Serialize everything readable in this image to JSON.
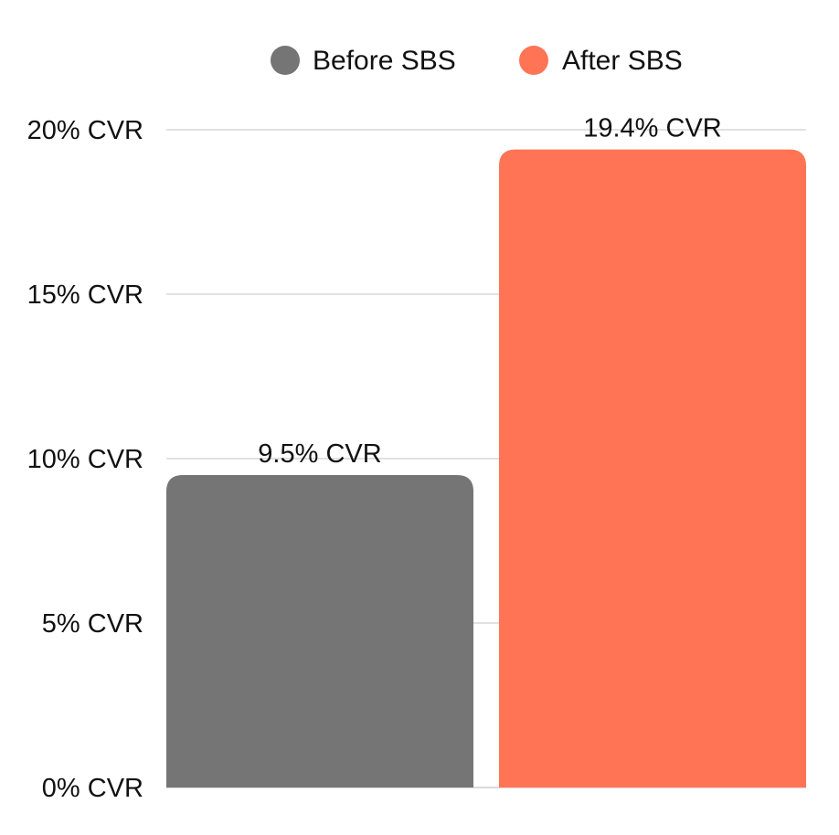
{
  "chart_data": {
    "type": "bar",
    "title": "",
    "xlabel": "",
    "ylabel": "",
    "ylim": [
      0,
      20
    ],
    "y_ticks": [
      0,
      5,
      10,
      15,
      20
    ],
    "y_tick_labels": [
      "0% CVR",
      "5% CVR",
      "10% CVR",
      "15% CVR",
      "20% CVR"
    ],
    "grid": true,
    "legend_position": "top-center",
    "categories": [
      "Before SBS",
      "After SBS"
    ],
    "values": [
      9.5,
      19.4
    ],
    "value_labels": [
      "9.5% CVR",
      "19.4% CVR"
    ],
    "colors": [
      "#757575",
      "#ff7455"
    ],
    "legend": [
      {
        "label": "Before SBS",
        "color": "#757575"
      },
      {
        "label": "After SBS",
        "color": "#ff7455"
      }
    ]
  }
}
